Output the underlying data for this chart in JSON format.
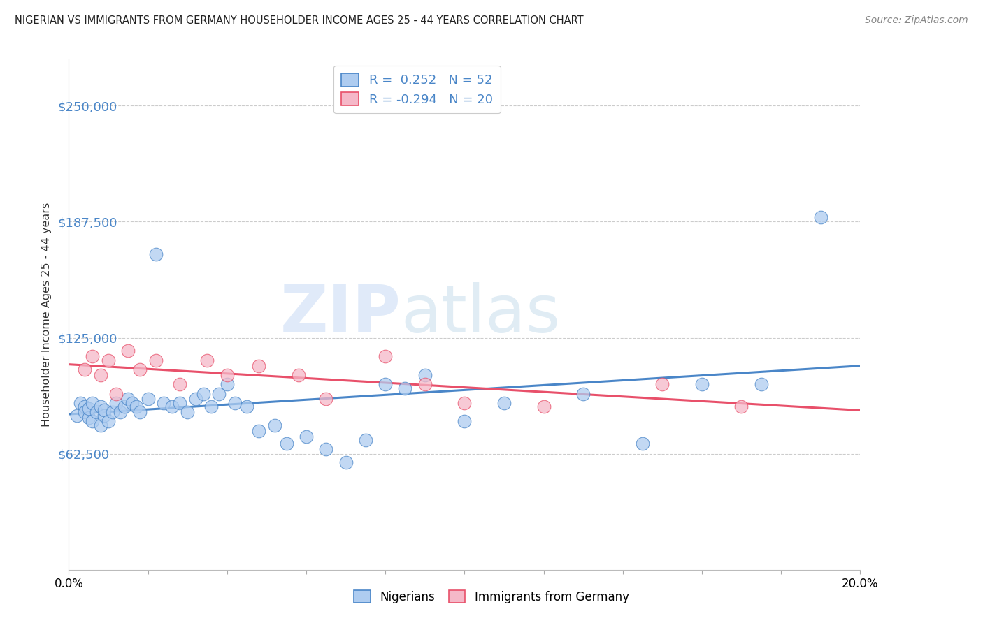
{
  "title": "NIGERIAN VS IMMIGRANTS FROM GERMANY HOUSEHOLDER INCOME AGES 25 - 44 YEARS CORRELATION CHART",
  "source": "Source: ZipAtlas.com",
  "ylabel": "Householder Income Ages 25 - 44 years",
  "xmin": 0.0,
  "xmax": 0.2,
  "ymin": 0,
  "ymax": 275000,
  "yticks": [
    62500,
    125000,
    187500,
    250000
  ],
  "ytick_labels": [
    "$62,500",
    "$125,000",
    "$187,500",
    "$250,000"
  ],
  "r_nigerian": 0.252,
  "n_nigerian": 52,
  "r_germany": -0.294,
  "n_germany": 20,
  "nigerian_color": "#aeccf0",
  "germany_color": "#f5b8c8",
  "nigerian_line_color": "#4a86c8",
  "germany_line_color": "#e8506a",
  "nigerian_x": [
    0.002,
    0.003,
    0.004,
    0.004,
    0.005,
    0.005,
    0.006,
    0.006,
    0.007,
    0.008,
    0.008,
    0.009,
    0.009,
    0.01,
    0.011,
    0.012,
    0.013,
    0.014,
    0.015,
    0.016,
    0.017,
    0.018,
    0.02,
    0.022,
    0.024,
    0.026,
    0.028,
    0.03,
    0.032,
    0.034,
    0.036,
    0.038,
    0.04,
    0.042,
    0.045,
    0.048,
    0.052,
    0.055,
    0.06,
    0.065,
    0.07,
    0.075,
    0.08,
    0.085,
    0.09,
    0.1,
    0.11,
    0.13,
    0.145,
    0.16,
    0.175,
    0.19
  ],
  "nigerian_y": [
    83000,
    90000,
    88000,
    85000,
    82000,
    87000,
    80000,
    90000,
    85000,
    88000,
    78000,
    83000,
    86000,
    80000,
    85000,
    90000,
    85000,
    88000,
    92000,
    90000,
    88000,
    85000,
    92000,
    170000,
    90000,
    88000,
    90000,
    85000,
    92000,
    95000,
    88000,
    95000,
    100000,
    90000,
    88000,
    75000,
    78000,
    68000,
    72000,
    65000,
    58000,
    70000,
    100000,
    98000,
    105000,
    80000,
    90000,
    95000,
    68000,
    100000,
    100000,
    190000
  ],
  "germany_x": [
    0.004,
    0.006,
    0.008,
    0.01,
    0.012,
    0.015,
    0.018,
    0.022,
    0.028,
    0.035,
    0.04,
    0.048,
    0.058,
    0.065,
    0.08,
    0.09,
    0.1,
    0.12,
    0.15,
    0.17
  ],
  "germany_y": [
    108000,
    115000,
    105000,
    113000,
    95000,
    118000,
    108000,
    113000,
    100000,
    113000,
    105000,
    110000,
    105000,
    92000,
    115000,
    100000,
    90000,
    88000,
    100000,
    88000
  ],
  "watermark_zip": "ZIP",
  "watermark_atlas": "atlas",
  "background_color": "#ffffff",
  "grid_color": "#cccccc",
  "xtick_positions": [
    0.0,
    0.02,
    0.04,
    0.06,
    0.08,
    0.1,
    0.12,
    0.14,
    0.16,
    0.18,
    0.2
  ],
  "xtick_labels": [
    "0.0%",
    "",
    "",
    "",
    "",
    "",
    "",
    "",
    "",
    "",
    "20.0%"
  ]
}
